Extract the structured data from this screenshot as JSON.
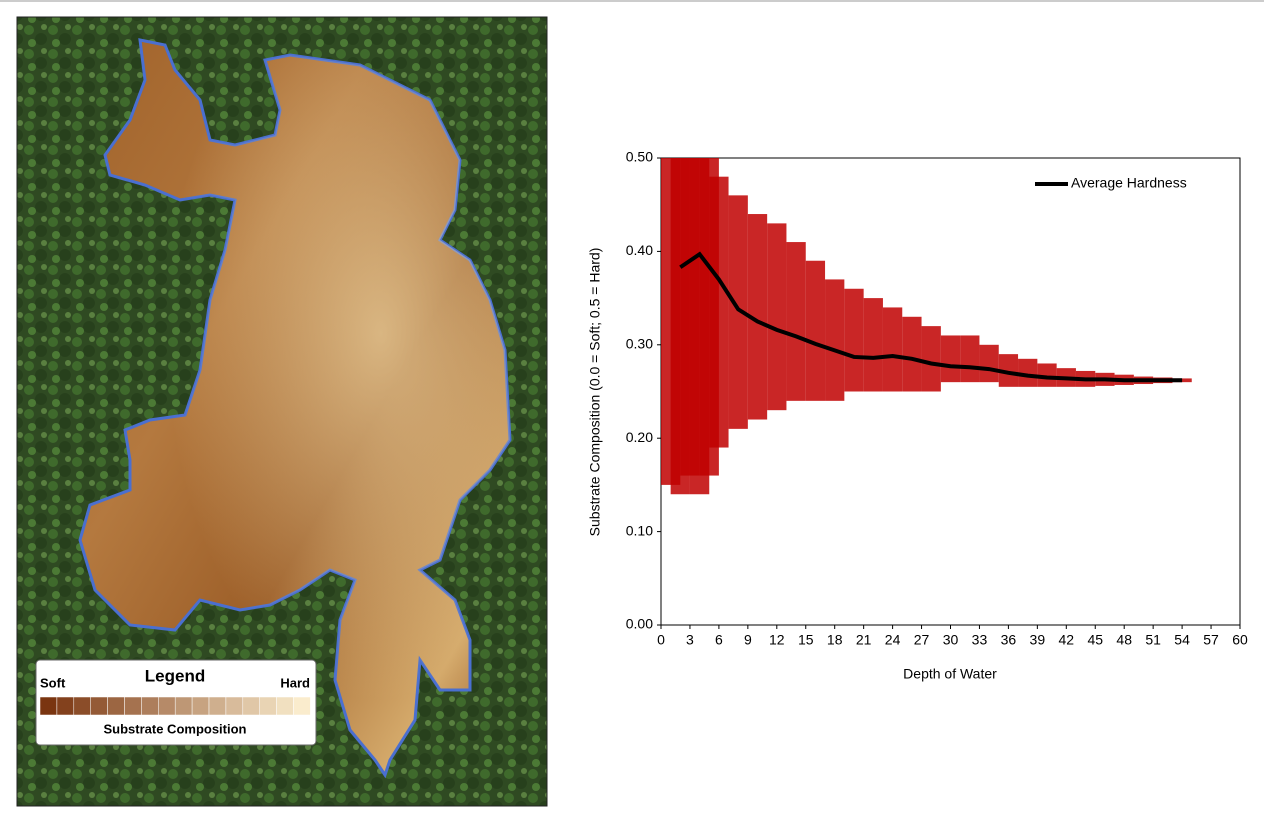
{
  "map": {
    "legend": {
      "title": "Legend",
      "low": "Soft",
      "high": "Hard",
      "caption": "Substrate Composition"
    }
  },
  "chart_data": {
    "type": "line",
    "xlabel": "Depth of Water",
    "ylabel": "Substrate Composition (0.0 = Soft; 0.5 = Hard)",
    "xlim": [
      0,
      60
    ],
    "xticks": [
      0,
      3,
      6,
      9,
      12,
      15,
      18,
      21,
      24,
      27,
      30,
      33,
      36,
      39,
      42,
      45,
      48,
      51,
      54,
      57,
      60
    ],
    "ylim": [
      0,
      0.5
    ],
    "yticks": [
      {
        "value": 0,
        "label": "0.00"
      },
      {
        "value": 0.1,
        "label": "0.10"
      },
      {
        "value": 0.2,
        "label": "0.20"
      },
      {
        "value": 0.3,
        "label": "0.30"
      },
      {
        "value": 0.4,
        "label": "0.40"
      },
      {
        "value": 0.5,
        "label": "0.50"
      }
    ],
    "legend": "upper right",
    "series": [
      {
        "name": "Average Hardness",
        "color": "#000000",
        "x": [
          2,
          4,
          6,
          8,
          10,
          12,
          14,
          16,
          18,
          20,
          22,
          24,
          26,
          28,
          30,
          32,
          34,
          36,
          38,
          40,
          42,
          44,
          46,
          48,
          50,
          52,
          54
        ],
        "values": [
          0.383,
          0.397,
          0.37,
          0.338,
          0.325,
          0.316,
          0.309,
          0.301,
          0.294,
          0.287,
          0.286,
          0.288,
          0.285,
          0.28,
          0.277,
          0.276,
          0.274,
          0.27,
          0.267,
          0.265,
          0.264,
          0.263,
          0.263,
          0.262,
          0.262,
          0.262,
          0.262
        ]
      }
    ],
    "cloud": {
      "color": "#c00000",
      "x": [
        1,
        2,
        3,
        4,
        5,
        6,
        8,
        10,
        12,
        14,
        16,
        18,
        20,
        22,
        24,
        26,
        28,
        30,
        32,
        34,
        36,
        38,
        40,
        42,
        44,
        46,
        48,
        50,
        52,
        54
      ],
      "min": [
        0.15,
        0.14,
        0.16,
        0.14,
        0.16,
        0.19,
        0.21,
        0.22,
        0.23,
        0.24,
        0.24,
        0.24,
        0.25,
        0.25,
        0.25,
        0.25,
        0.25,
        0.26,
        0.26,
        0.26,
        0.255,
        0.255,
        0.255,
        0.255,
        0.255,
        0.256,
        0.257,
        0.258,
        0.259,
        0.26
      ],
      "max": [
        0.5,
        0.5,
        0.5,
        0.5,
        0.5,
        0.48,
        0.46,
        0.44,
        0.43,
        0.41,
        0.39,
        0.37,
        0.36,
        0.35,
        0.34,
        0.33,
        0.32,
        0.31,
        0.31,
        0.3,
        0.29,
        0.285,
        0.28,
        0.275,
        0.272,
        0.27,
        0.268,
        0.266,
        0.265,
        0.264
      ]
    }
  }
}
